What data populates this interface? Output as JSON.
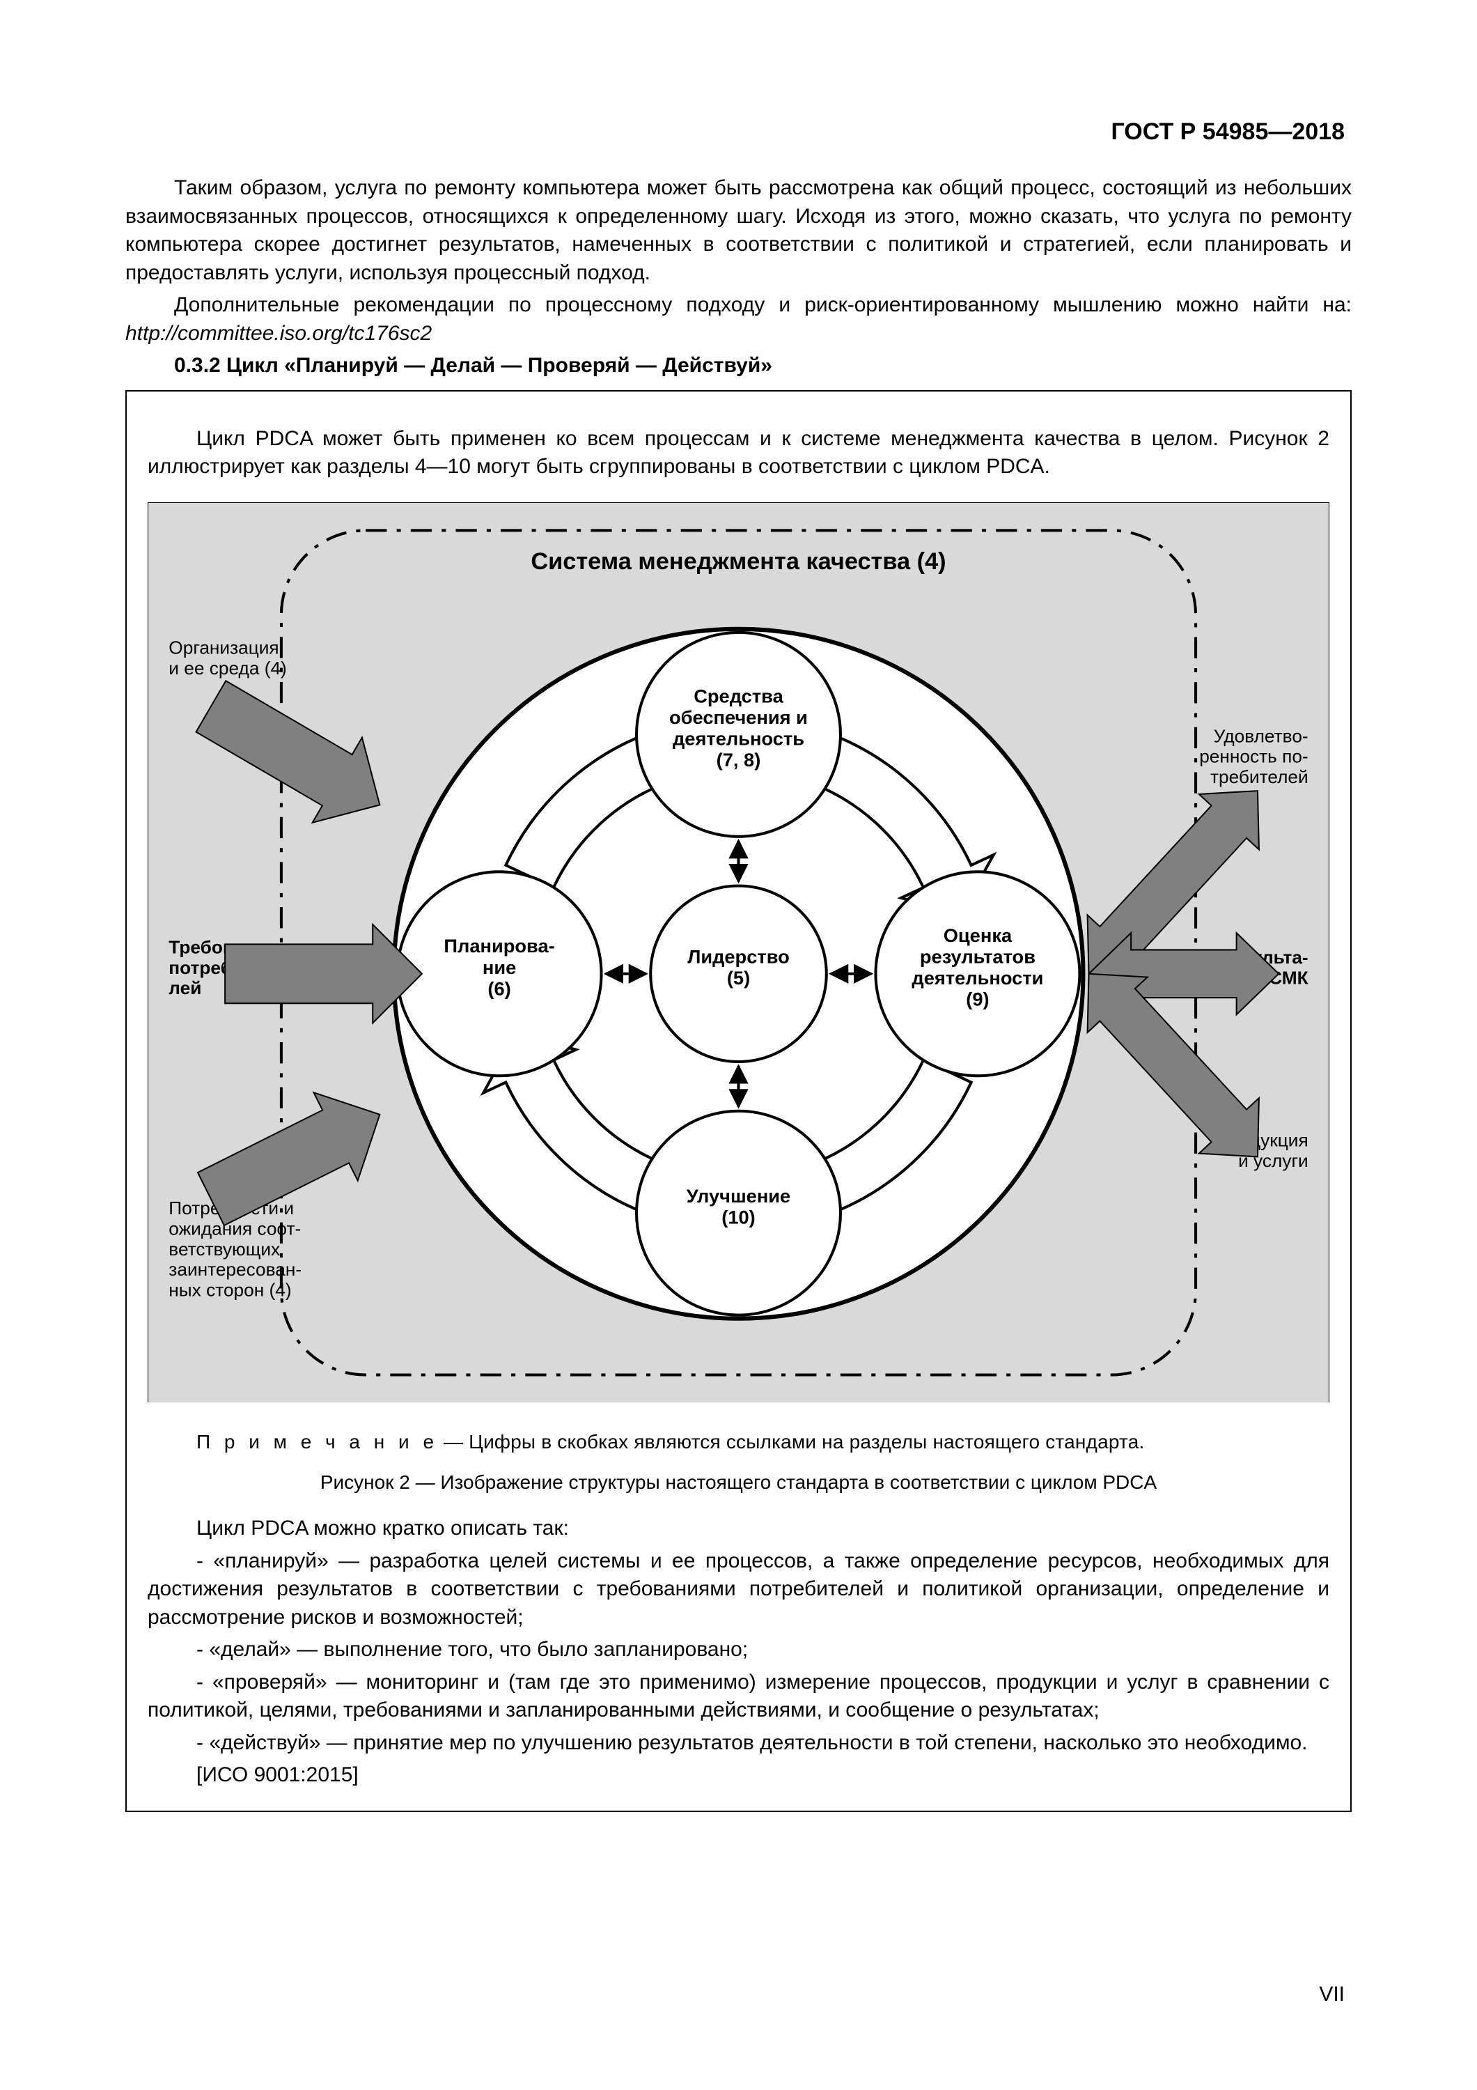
{
  "doc_id": "ГОСТ Р 54985—2018",
  "para1": "Таким образом, услуга по ремонту компьютера может быть рассмотрена как общий процесс, состоящий из небольших взаимосвязанных процессов, относящихся к определенному шагу. Исходя из этого, можно сказать, что услуга по ремонту компьютера скорее достигнет результатов, намеченных в соответствии с политикой и стратегией, если планировать и предоставлять услуги, используя процессный подход.",
  "para2_a": "Дополнительные рекомендации по процессному подходу и риск-ориентированному мышлению можно найти на: ",
  "para2_url": "http://committee.iso.org/tc176sc2",
  "heading": "0.3.2 Цикл «Планируй — Делай — Проверяй — Действуй»",
  "framed_intro": "Цикл PDCA может быть применен ко всем процессам и к системе менеджмента качества в целом. Рисунок 2 иллюстрирует как разделы 4—10 могут быть сгруппированы в соответствии с циклом PDCA.",
  "diagram": {
    "bg_color": "#d9d9d9",
    "circle_stroke": "#000000",
    "node_fill": "#ffffff",
    "arrow_gray": "#808080",
    "arrow_open_fill": "#ffffff",
    "title": "Система менеджмента качества (4)",
    "title_fontsize": 34,
    "title_weight": "bold",
    "nodes": {
      "center": {
        "lines": [
          "Лидерство",
          "(5)"
        ]
      },
      "top": {
        "lines": [
          "Средства",
          "обеспечения и",
          "деятельность",
          "(7, 8)"
        ]
      },
      "right": {
        "lines": [
          "Оценка",
          "результатов",
          "деятельности",
          "(9)"
        ]
      },
      "bottom": {
        "lines": [
          "Улучшение",
          "(10)"
        ]
      },
      "left": {
        "lines": [
          "Планирова-",
          "ние",
          "(6)"
        ]
      }
    },
    "node_fontsize": 27,
    "node_weight": "bold",
    "labels": {
      "org": "Организация\nи ее среда (4)",
      "req": "Требования\nпотребите-\nлей",
      "needs": "Потребности и\nожидания соот-\nветствующих\nзаинтересован-\nных сторон (4)",
      "sat": "Удовлетво-\nренность по-\nтребителей",
      "res": "Результа-\nты СМК",
      "prod": "Продукция\nи услуги"
    },
    "label_fontsize": 26
  },
  "note_prefix": "П р и м е ч а н и е",
  "note_text": " — Цифры в скобках являются ссылками на разделы настоящего стандарта.",
  "fig_caption": "Рисунок 2 — Изображение структуры настоящего стандарта в соответствии с циклом PDCA",
  "brief_intro": "Цикл PDCA можно кратко описать так:",
  "b1": "- «планируй» — разработка целей системы и ее процессов, а также определение ресурсов, необходимых для достижения результатов в соответствии с требованиями потребителей и политикой организации, определение и рассмотрение рисков и возможностей;",
  "b2": "- «делай» — выполнение того, что было запланировано;",
  "b3": "- «проверяй» — мониторинг и (там где это применимо) измерение процессов, продукции и услуг в сравнении с политикой, целями, требованиями и запланированными действиями, и сообщение о результатах;",
  "b4": "- «действуй» — принятие мер по улучшению результатов деятельности в той степени, насколько это необходимо.",
  "ref": "[ИСО 9001:2015]",
  "page_number": "VII"
}
